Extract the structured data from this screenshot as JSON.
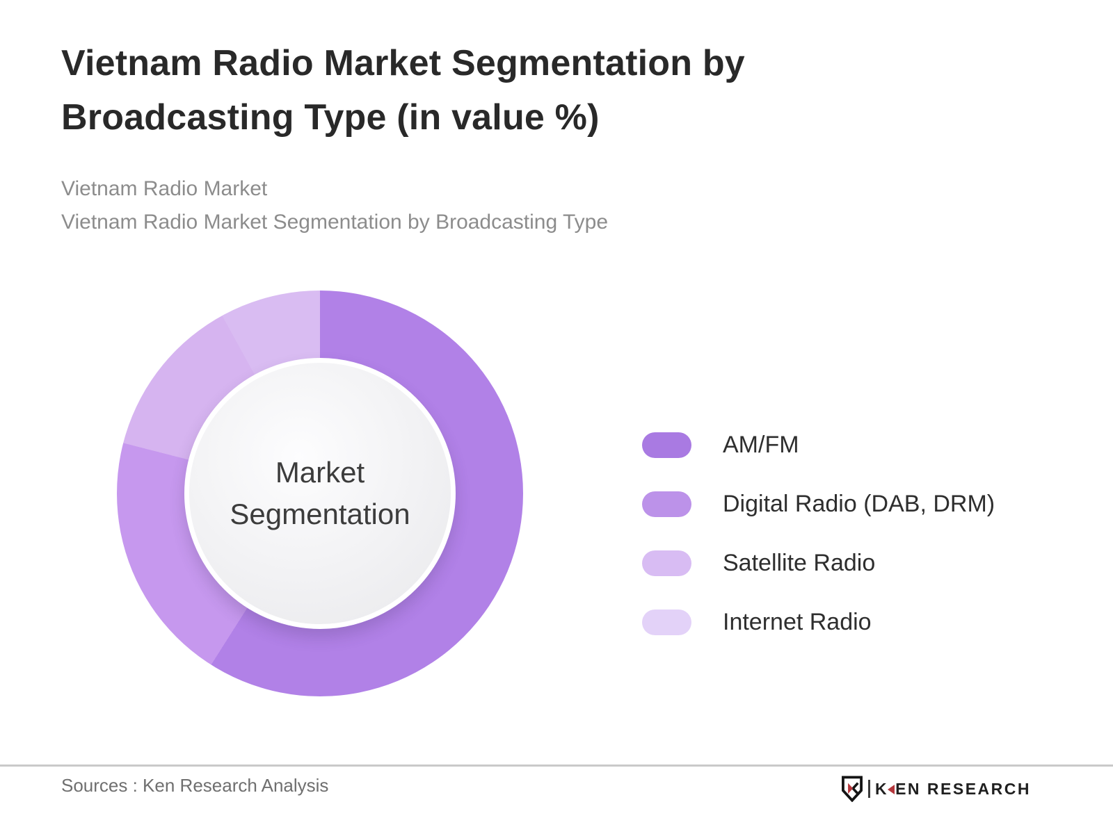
{
  "header": {
    "title": "Vietnam Radio Market Segmentation by Broadcasting Type (in value %)",
    "subtitle_lines": [
      "Vietnam Radio Market",
      "Vietnam Radio Market Segmentation by Broadcasting Type"
    ]
  },
  "chart_data": {
    "type": "pie",
    "donut": true,
    "title": "Vietnam Radio Market Segmentation by Broadcasting Type (in value %)",
    "center_label": "Market Segmentation",
    "categories": [
      "AM/FM",
      "Digital Radio (DAB, DRM)",
      "Satellite Radio",
      "Internet Radio"
    ],
    "values": [
      59,
      20,
      13,
      8
    ],
    "segment_colors": [
      "#b181e7",
      "#c698ee",
      "#d6b4f0",
      "#d9bcf2"
    ],
    "legend_swatch_colors": [
      "#a97ae2",
      "#bc92e9",
      "#d8bcf3",
      "#e3d2f8"
    ],
    "start_angle_deg": 0,
    "legend_position": "right"
  },
  "footer": {
    "source": "Sources : Ken Research Analysis",
    "logo": {
      "full": "KEN RESEARCH",
      "k": "K",
      "rest": "EN RESEARCH"
    }
  }
}
